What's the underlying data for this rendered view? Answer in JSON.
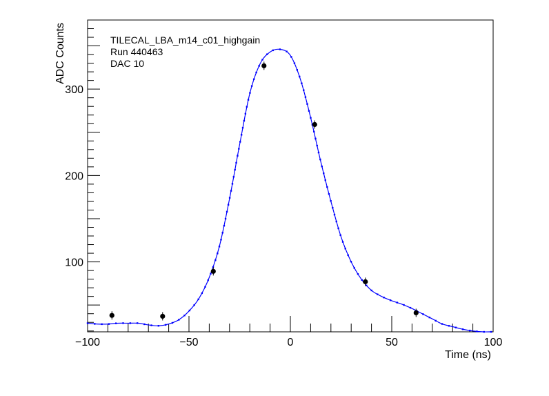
{
  "chart_data": {
    "type": "scatter",
    "title": "",
    "annotations": [
      "TILECAL_LBA_m14_c01_highgain",
      "Run 440463",
      "DAC 10"
    ],
    "xlabel": "Time (ns)",
    "ylabel": "ADC Counts",
    "xlim": [
      -100,
      100
    ],
    "ylim": [
      19,
      380
    ],
    "x_ticks": [
      -100,
      -50,
      0,
      50,
      100
    ],
    "y_ticks": [
      100,
      200,
      300
    ],
    "grid": false,
    "legend": "none",
    "series": [
      {
        "type": "scatter",
        "color": "#000000",
        "points": [
          {
            "x": -88,
            "y": 38
          },
          {
            "x": -63,
            "y": 37
          },
          {
            "x": -38,
            "y": 89
          },
          {
            "x": -13,
            "y": 327
          },
          {
            "x": 12,
            "y": 259
          },
          {
            "x": 37,
            "y": 77
          },
          {
            "x": 62,
            "y": 41
          }
        ]
      },
      {
        "type": "line",
        "color": "#0000ff",
        "x": [
          -100,
          -95,
          -90,
          -85,
          -80,
          -75,
          -70,
          -65,
          -60,
          -55,
          -50,
          -45,
          -40,
          -35,
          -30,
          -25,
          -20,
          -15,
          -10,
          -5,
          0,
          5,
          10,
          15,
          20,
          25,
          30,
          35,
          40,
          45,
          50,
          55,
          60,
          65,
          70,
          75,
          80,
          85,
          90,
          95,
          99
        ],
        "y": [
          29,
          28,
          28,
          29,
          29,
          29,
          27,
          26,
          28,
          33,
          43,
          58,
          82,
          118,
          173,
          236,
          295,
          329,
          343,
          346,
          339,
          311,
          267,
          216,
          170,
          129,
          100,
          80,
          67,
          60,
          55,
          51,
          46,
          40,
          34,
          28,
          25,
          22,
          20,
          19,
          19
        ]
      }
    ]
  }
}
